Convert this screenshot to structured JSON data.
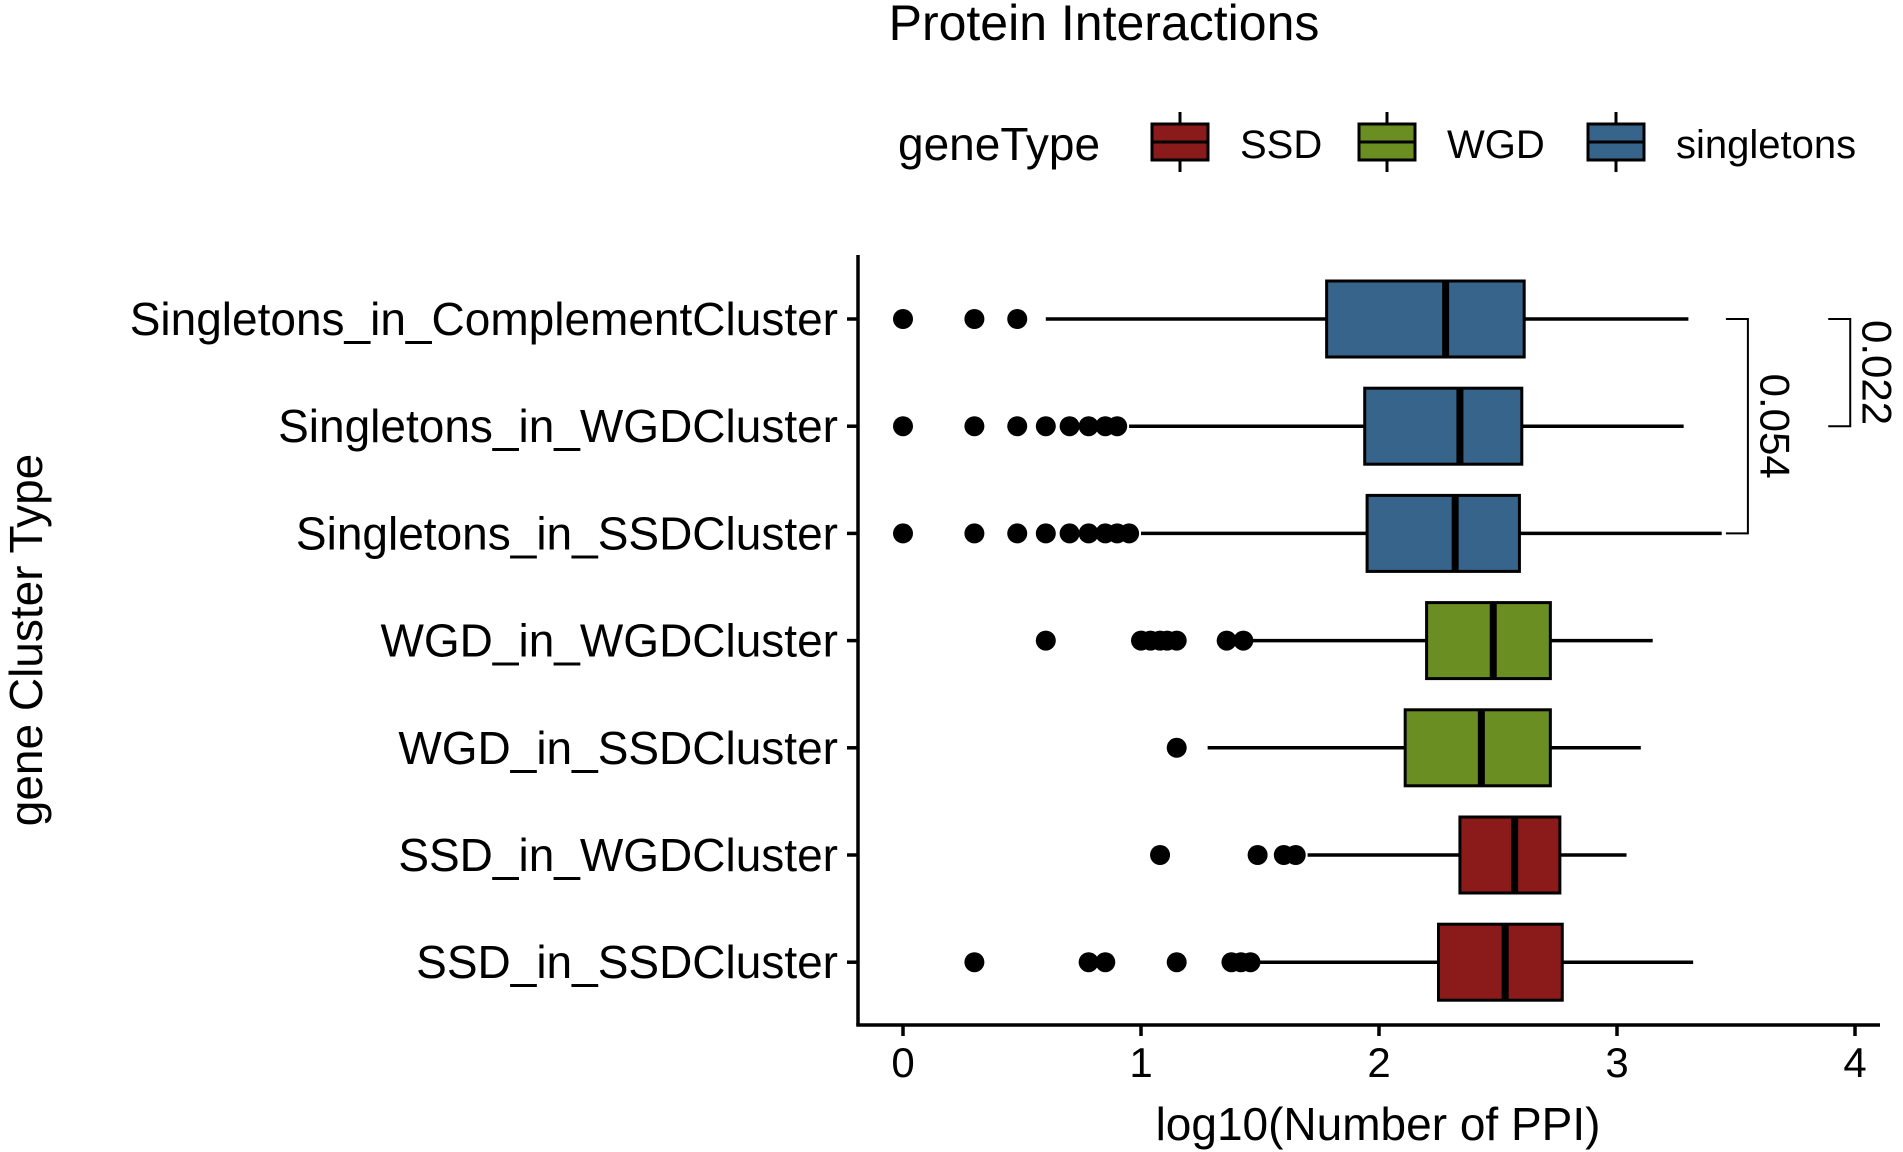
{
  "chart_data": {
    "type": "boxplot",
    "orientation": "horizontal",
    "title": "Protein Interactions",
    "xlabel": "log10(Number of PPI)",
    "ylabel": "gene Cluster Type",
    "xlim": [
      -0.2,
      4.2
    ],
    "xticks": [
      0,
      1,
      2,
      3,
      4
    ],
    "grid": false,
    "legend": {
      "title": "geneType",
      "position": "top",
      "entries": [
        {
          "key": "SSD",
          "label": "SSD",
          "color": "#8B1A1A"
        },
        {
          "key": "WGD",
          "label": "WGD",
          "color": "#6B8E23"
        },
        {
          "key": "singletons",
          "label": "singletons",
          "color": "#36648B"
        }
      ]
    },
    "categories": [
      "Singletons_in_ComplementCluster",
      "Singletons_in_WGDCluster",
      "Singletons_in_SSDCluster",
      "WGD_in_WGDCluster",
      "WGD_in_SSDCluster",
      "SSD_in_WGDCluster",
      "SSD_in_SSDCluster"
    ],
    "boxes": [
      {
        "category": "Singletons_in_ComplementCluster",
        "group": "singletons",
        "whisker_low": 0.6,
        "q1": 1.78,
        "median": 2.28,
        "q3": 2.61,
        "whisker_high": 3.3,
        "outliers": [
          0,
          0.3,
          0.48
        ]
      },
      {
        "category": "Singletons_in_WGDCluster",
        "group": "singletons",
        "whisker_low": 0.95,
        "q1": 1.94,
        "median": 2.34,
        "q3": 2.6,
        "whisker_high": 3.28,
        "outliers": [
          0,
          0.3,
          0.48,
          0.6,
          0.7,
          0.78,
          0.85,
          0.9
        ]
      },
      {
        "category": "Singletons_in_SSDCluster",
        "group": "singletons",
        "whisker_low": 1.0,
        "q1": 1.95,
        "median": 2.32,
        "q3": 2.59,
        "whisker_high": 3.44,
        "outliers": [
          0,
          0.3,
          0.48,
          0.6,
          0.7,
          0.78,
          0.85,
          0.9,
          0.95
        ]
      },
      {
        "category": "WGD_in_WGDCluster",
        "group": "WGD",
        "whisker_low": 1.45,
        "q1": 2.2,
        "median": 2.48,
        "q3": 2.72,
        "whisker_high": 3.15,
        "outliers": [
          0.6,
          1.0,
          1.04,
          1.08,
          1.11,
          1.15,
          1.36,
          1.43
        ]
      },
      {
        "category": "WGD_in_SSDCluster",
        "group": "WGD",
        "whisker_low": 1.28,
        "q1": 2.11,
        "median": 2.43,
        "q3": 2.72,
        "whisker_high": 3.1,
        "outliers": [
          1.15
        ]
      },
      {
        "category": "SSD_in_WGDCluster",
        "group": "SSD",
        "whisker_low": 1.7,
        "q1": 2.34,
        "median": 2.57,
        "q3": 2.76,
        "whisker_high": 3.04,
        "outliers": [
          1.08,
          1.49,
          1.6,
          1.65
        ]
      },
      {
        "category": "SSD_in_SSDCluster",
        "group": "SSD",
        "whisker_low": 1.5,
        "q1": 2.25,
        "median": 2.53,
        "q3": 2.77,
        "whisker_high": 3.32,
        "outliers": [
          0.3,
          0.78,
          0.85,
          1.15,
          1.38,
          1.42,
          1.46
        ]
      }
    ],
    "annotations": [
      {
        "label": "0.054",
        "from": "Singletons_in_ComplementCluster",
        "to": "Singletons_in_SSDCluster",
        "x": 3.55
      },
      {
        "label": "0.022",
        "from": "Singletons_in_ComplementCluster",
        "to": "Singletons_in_WGDCluster",
        "x": 3.98
      }
    ]
  }
}
